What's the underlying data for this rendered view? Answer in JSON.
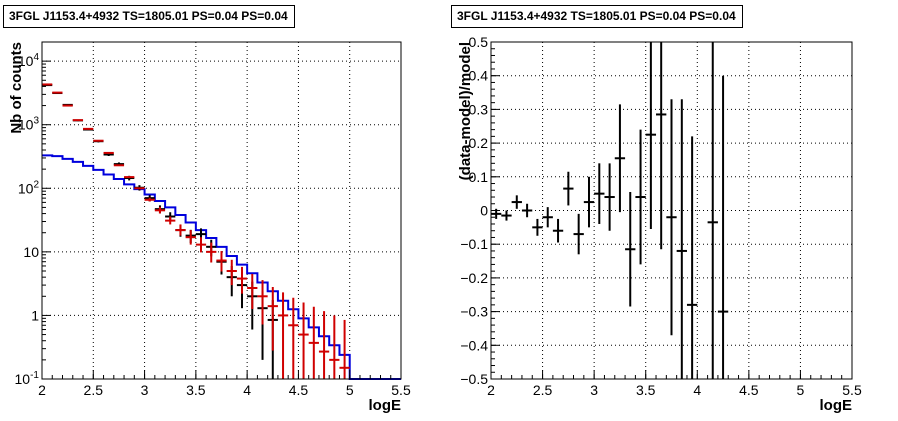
{
  "chart_data": [
    {
      "type": "histogram",
      "title": "3FGL J1153.4+4932 TS=1805.01 PS=0.04 PS=0.04",
      "xlabel": "logE",
      "ylabel": "Nb of counts",
      "xlim": [
        2,
        5.5
      ],
      "ylim": [
        0.1,
        20000
      ],
      "yscale": "log",
      "grid": true,
      "xticks": [
        "2",
        "2.5",
        "3",
        "3.5",
        "4",
        "4.5",
        "5",
        "5.5"
      ],
      "yticks": [
        "10^{4}",
        "10^{3}",
        "10^{2}",
        "10",
        "1",
        "10^{-1}"
      ],
      "series": [
        {
          "color": "#d00000",
          "style": "points-with-errors",
          "x": [
            2.05,
            2.15,
            2.25,
            2.35,
            2.45,
            2.55,
            2.65,
            2.75,
            2.85,
            2.95,
            3.05,
            3.15,
            3.25,
            3.35,
            3.45,
            3.55,
            3.65,
            3.75,
            3.85,
            3.95,
            4.05,
            4.15,
            4.25,
            4.35,
            4.45,
            4.55,
            4.65,
            4.75,
            4.85,
            4.95
          ],
          "y": [
            4300,
            3200,
            2000,
            1180,
            860,
            560,
            360,
            230,
            150,
            100,
            66,
            45,
            31,
            22,
            17,
            13,
            10,
            7.3,
            5,
            3.8,
            2.7,
            2,
            1.4,
            1,
            0.7,
            0.5,
            0.37,
            0.27,
            0.2,
            0.15
          ],
          "yerr_low": [
            0,
            0,
            0,
            0,
            0,
            0,
            0,
            0,
            0,
            0,
            0,
            0,
            0,
            0,
            0,
            0,
            0,
            0,
            0,
            0,
            0,
            0,
            0,
            0,
            0,
            0,
            0,
            0,
            0,
            0
          ],
          "yerr_high": [
            0,
            0,
            0,
            0,
            0,
            0,
            0,
            0,
            0,
            0,
            5,
            6,
            5,
            5,
            5,
            4,
            4,
            3,
            2.5,
            2,
            1.8,
            1.6,
            1.4,
            1.3,
            1.2,
            1.1,
            1,
            0.9,
            0.8,
            0.7
          ]
        },
        {
          "color": "#000000",
          "style": "points-with-errors",
          "x": [
            2.05,
            2.15,
            2.25,
            2.35,
            2.45,
            2.55,
            2.65,
            2.75,
            2.85,
            2.95,
            3.05,
            3.15,
            3.25,
            3.35,
            3.45,
            3.55,
            3.65,
            3.75,
            3.85,
            3.95,
            4.05,
            4.15,
            4.25
          ],
          "y": [
            4200,
            3150,
            2050,
            1170,
            840,
            550,
            340,
            240,
            145,
            102,
            70,
            47,
            36,
            22,
            18,
            19,
            12,
            7,
            4,
            3,
            2,
            1.3,
            0.85
          ],
          "yerr": [
            65,
            56,
            45,
            34,
            29,
            23,
            18,
            15,
            12,
            10,
            8,
            6.9,
            6,
            4.7,
            4.2,
            4.4,
            3.5,
            2.6,
            2,
            1.7,
            1.4,
            1.1,
            0.9
          ]
        },
        {
          "color": "#0000dd",
          "style": "step",
          "x": [
            2.05,
            2.15,
            2.25,
            2.35,
            2.45,
            2.55,
            2.65,
            2.75,
            2.85,
            2.95,
            3.05,
            3.15,
            3.25,
            3.35,
            3.45,
            3.55,
            3.65,
            3.75,
            3.85,
            3.95,
            4.05,
            4.15,
            4.25,
            4.35,
            4.45,
            4.55,
            4.65,
            4.75,
            4.85,
            4.95,
            5.05,
            5.15,
            5.25,
            5.35,
            5.45
          ],
          "y": [
            330,
            320,
            290,
            260,
            225,
            195,
            165,
            140,
            115,
            97,
            80,
            63,
            50,
            38,
            29,
            22,
            16.5,
            12,
            8.6,
            6.3,
            4.6,
            3.3,
            2.4,
            1.7,
            1.25,
            0.9,
            0.65,
            0.47,
            0.34,
            0.24,
            0.1,
            0.1,
            0.1,
            0.1,
            0.1
          ]
        }
      ]
    },
    {
      "type": "scatter",
      "title": "3FGL J1153.4+4932 TS=1805.01 PS=0.04 PS=0.04",
      "xlabel": "logE",
      "ylabel": "(data-model)/model",
      "xlim": [
        2,
        5.5
      ],
      "ylim": [
        -0.5,
        0.5
      ],
      "grid": true,
      "xticks": [
        "2",
        "2.5",
        "3",
        "3.5",
        "4",
        "4.5",
        "5",
        "5.5"
      ],
      "yticks": [
        "0.5",
        "0.4",
        "0.3",
        "0.2",
        "0.1",
        "0",
        "−0.1",
        "−0.2",
        "−0.3",
        "−0.4",
        "−0.5"
      ],
      "series": [
        {
          "color": "#000000",
          "style": "points-with-errors",
          "x": [
            2.05,
            2.15,
            2.25,
            2.35,
            2.45,
            2.55,
            2.65,
            2.75,
            2.85,
            2.95,
            3.05,
            3.15,
            3.25,
            3.35,
            3.45,
            3.55,
            3.65,
            3.75,
            3.85,
            3.95,
            4.15,
            4.25
          ],
          "y": [
            -0.01,
            -0.015,
            0.025,
            0.0,
            -0.05,
            -0.02,
            -0.06,
            0.065,
            -0.07,
            0.025,
            0.05,
            0.04,
            0.155,
            -0.115,
            0.04,
            0.225,
            0.285,
            -0.02,
            -0.12,
            -0.28,
            -0.035,
            -0.3
          ],
          "yerr": [
            0.015,
            0.015,
            0.02,
            0.02,
            0.025,
            0.03,
            0.035,
            0.05,
            0.06,
            0.075,
            0.09,
            0.1,
            0.16,
            0.17,
            0.2,
            0.28,
            0.4,
            0.35,
            0.45,
            0.5,
            0.6,
            0.7
          ]
        }
      ]
    }
  ]
}
